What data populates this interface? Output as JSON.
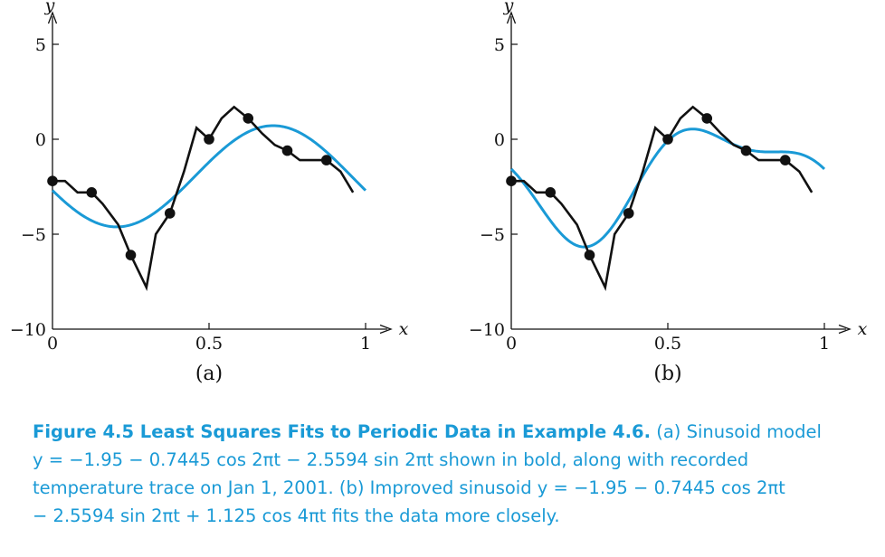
{
  "chart_data": [
    {
      "type": "line",
      "panel_label": "(a)",
      "xlabel": "x",
      "ylabel": "y",
      "xlim": [
        0,
        1
      ],
      "ylim": [
        -10,
        5
      ],
      "x_ticks": [
        0,
        0.5,
        1
      ],
      "x_tick_labels": [
        "0",
        "0.5",
        "1"
      ],
      "y_ticks": [
        5,
        0,
        -5,
        -10
      ],
      "y_tick_labels": [
        "5",
        "0",
        "−5",
        "−10"
      ],
      "grid": false,
      "series": [
        {
          "role": "recorded-data",
          "color": "#111111",
          "x": [
            0,
            0.04,
            0.08,
            0.125,
            0.16,
            0.21,
            0.25,
            0.3,
            0.33,
            0.375,
            0.42,
            0.46,
            0.5,
            0.54,
            0.58,
            0.625,
            0.67,
            0.71,
            0.75,
            0.79,
            0.83,
            0.875,
            0.92,
            0.96
          ],
          "y": [
            -2.2,
            -2.2,
            -2.8,
            -2.8,
            -3.4,
            -4.5,
            -6.1,
            -7.8,
            -5.0,
            -3.9,
            -1.7,
            0.6,
            0.0,
            1.1,
            1.7,
            1.1,
            0.3,
            -0.3,
            -0.6,
            -1.1,
            -1.1,
            -1.1,
            -1.7,
            -2.8
          ],
          "markers_x": [
            0,
            0.125,
            0.25,
            0.375,
            0.5,
            0.625,
            0.75,
            0.875
          ],
          "markers_y": [
            -2.2,
            -2.8,
            -6.1,
            -3.9,
            0.0,
            1.1,
            -0.6,
            -1.1
          ]
        },
        {
          "role": "fit",
          "color": "#1a9ad6",
          "model": "y = -1.95 - 0.7445 cos 2πt - 2.5594 sin 2πt",
          "coefficients": {
            "c1": -1.95,
            "c2": -0.7445,
            "c3": -2.5594,
            "c4": 0
          }
        }
      ]
    },
    {
      "type": "line",
      "panel_label": "(b)",
      "xlabel": "x",
      "ylabel": "y",
      "xlim": [
        0,
        1
      ],
      "ylim": [
        -10,
        5
      ],
      "x_ticks": [
        0,
        0.5,
        1
      ],
      "x_tick_labels": [
        "0",
        "0.5",
        "1"
      ],
      "y_ticks": [
        5,
        0,
        -5,
        -10
      ],
      "y_tick_labels": [
        "5",
        "0",
        "−5",
        "−10"
      ],
      "grid": false,
      "series": [
        {
          "role": "recorded-data",
          "color": "#111111",
          "x": [
            0,
            0.04,
            0.08,
            0.125,
            0.16,
            0.21,
            0.25,
            0.3,
            0.33,
            0.375,
            0.42,
            0.46,
            0.5,
            0.54,
            0.58,
            0.625,
            0.67,
            0.71,
            0.75,
            0.79,
            0.83,
            0.875,
            0.92,
            0.96
          ],
          "y": [
            -2.2,
            -2.2,
            -2.8,
            -2.8,
            -3.4,
            -4.5,
            -6.1,
            -7.8,
            -5.0,
            -3.9,
            -1.7,
            0.6,
            0.0,
            1.1,
            1.7,
            1.1,
            0.3,
            -0.3,
            -0.6,
            -1.1,
            -1.1,
            -1.1,
            -1.7,
            -2.8
          ],
          "markers_x": [
            0,
            0.125,
            0.25,
            0.375,
            0.5,
            0.625,
            0.75,
            0.875
          ],
          "markers_y": [
            -2.2,
            -2.8,
            -6.1,
            -3.9,
            0.0,
            1.1,
            -0.6,
            -1.1
          ]
        },
        {
          "role": "fit",
          "color": "#1a9ad6",
          "model": "y = -1.95 - 0.7445 cos 2πt - 2.5594 sin 2πt + 1.125 cos 4πt",
          "coefficients": {
            "c1": -1.95,
            "c2": -0.7445,
            "c3": -2.5594,
            "c4": 1.125
          }
        }
      ]
    }
  ],
  "caption": {
    "title": "Figure 4.5 Least Squares Fits to Periodic Data in Example 4.6.",
    "line1_rest": " (a) Sinusoid model",
    "line2": "y = −1.95 − 0.7445 cos 2πt − 2.5594 sin 2πt  shown in bold, along with recorded",
    "line3": "temperature trace on Jan 1, 2001. (b) Improved sinusoid  y = −1.95 − 0.7445 cos 2πt",
    "line4": "− 2.5594 sin 2πt + 1.125 cos 4πt  fits the data more closely."
  }
}
